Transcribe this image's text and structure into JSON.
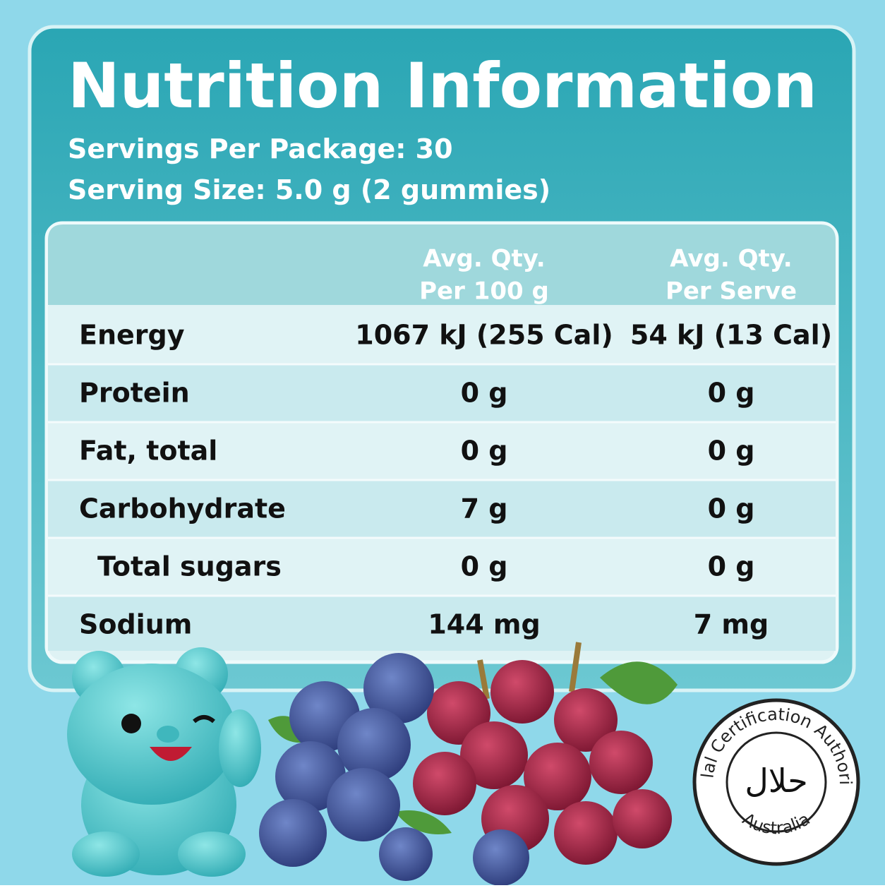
{
  "header": {
    "title": "Nutrition Information",
    "servings": "Servings Per Package: 30",
    "serving_size": "Serving Size: 5.0 g (2 gummies)"
  },
  "table": {
    "headers": [
      [
        "Avg. Qty.",
        "Per 100 g"
      ],
      [
        "Avg. Qty.",
        "Per Serve"
      ]
    ],
    "rows": [
      [
        "Energy",
        "1067 kJ (255 Cal)",
        "54 kJ (13 Cal)"
      ],
      [
        "Protein",
        "0 g",
        "0 g"
      ],
      [
        "Fat, total",
        "0 g",
        "0 g"
      ],
      [
        "Carbohydrate",
        "7 g",
        "0 g"
      ],
      [
        "Total sugars",
        "0 g",
        "0 g"
      ],
      [
        "Sodium",
        "144 mg",
        "7 mg"
      ]
    ]
  },
  "badge": {
    "ring_top": "Halal Certification Authority",
    "ring_bottom": "Australia",
    "center": "حلال"
  }
}
